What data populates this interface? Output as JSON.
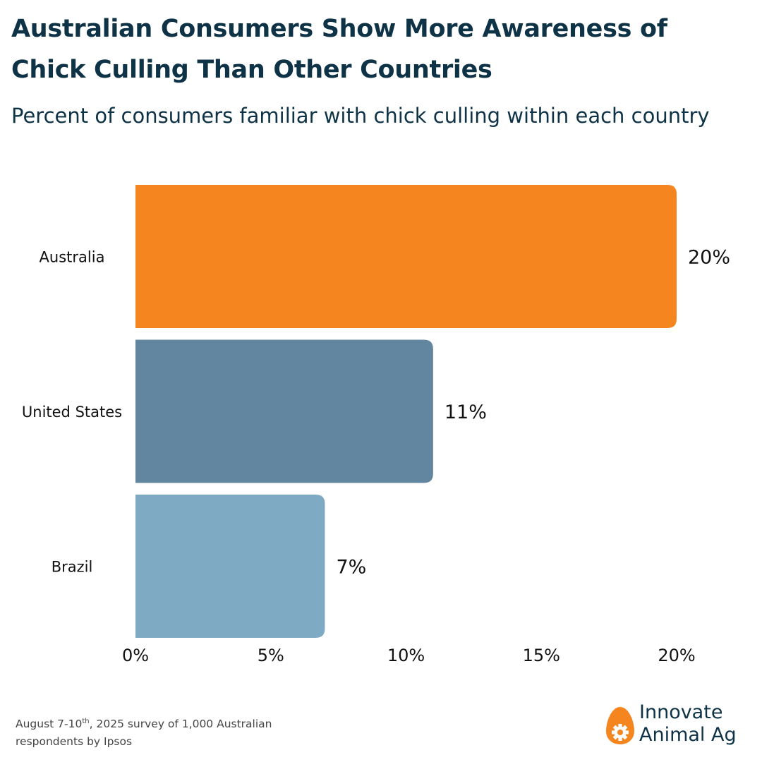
{
  "chart_data": {
    "type": "bar",
    "orientation": "horizontal",
    "title": "Australian Consumers Show More Awareness of Chick Culling Than Other Countries",
    "subtitle": "Percent of consumers familiar with chick culling within each country",
    "categories": [
      "Australia",
      "United States",
      "Brazil"
    ],
    "values": [
      20,
      11,
      7
    ],
    "value_labels": [
      "20%",
      "11%",
      "7%"
    ],
    "colors": [
      "#f5861f",
      "#62869f",
      "#7eaac4"
    ],
    "xlim": [
      0,
      20
    ],
    "xticks": [
      0,
      5,
      10,
      15,
      20
    ],
    "xtick_labels": [
      "0%",
      "5%",
      "10%",
      "15%",
      "20%"
    ],
    "xlabel": "",
    "ylabel": "",
    "grid": false,
    "legend": "none"
  },
  "footnote": {
    "prefix": "August 7-10",
    "superscript": "th",
    "suffix": ", 2025 survey of 1,000 Australian respondents by Ipsos"
  },
  "logo": {
    "line1": "Innovate",
    "line2": "Animal Ag",
    "icon": "egg-gear-icon",
    "egg_color": "#f5861f",
    "gear_color": "#ffffff"
  },
  "colors": {
    "title": "#0f3346",
    "text": "#111111",
    "footnote": "#444444"
  }
}
